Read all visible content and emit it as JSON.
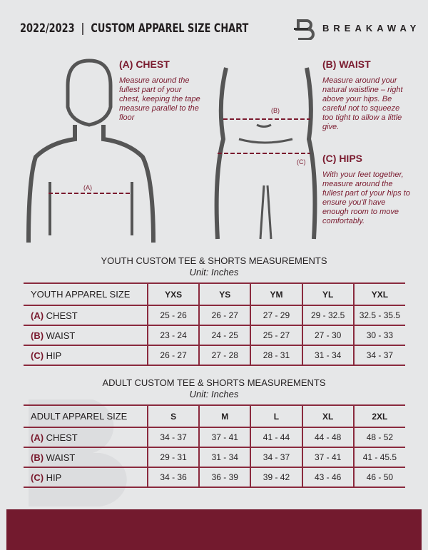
{
  "header": {
    "title": "2022/2023  |  CUSTOM APPAREL SIZE CHART",
    "brand": "BREAKAWAY"
  },
  "measures": {
    "chest": {
      "title": "(A) CHEST",
      "desc": "Measure around the fullest part of your chest, keeping the tape measure parallel to the floor",
      "marker": "(A)"
    },
    "waist": {
      "title": "(B) WAIST",
      "desc": "Measure around your natural waistline – right above your hips. Be careful not to squeeze too tight to allow a little give.",
      "marker": "(B)"
    },
    "hips": {
      "title": "(C) HIPS",
      "desc": "With your feet together, measure around the fullest part of your hips to ensure you'll have enough room to move comfortably.",
      "marker": "(C)"
    }
  },
  "youth": {
    "heading": "YOUTH CUSTOM TEE & SHORTS MEASUREMENTS",
    "unit": "Unit: Inches",
    "size_label": "YOUTH APPAREL SIZE",
    "sizes": [
      "YXS",
      "YS",
      "YM",
      "YL",
      "YXL"
    ],
    "rows": [
      {
        "code": "(A)",
        "name": "CHEST",
        "values": [
          "25 - 26",
          "26 - 27",
          "27 - 29",
          "29 - 32.5",
          "32.5 - 35.5"
        ]
      },
      {
        "code": "(B)",
        "name": "WAIST",
        "values": [
          "23 - 24",
          "24 - 25",
          "25 - 27",
          "27 - 30",
          "30 - 33"
        ]
      },
      {
        "code": "(C)",
        "name": "HIP",
        "values": [
          "26 - 27",
          "27 - 28",
          "28 - 31",
          "31 - 34",
          "34 - 37"
        ]
      }
    ]
  },
  "adult": {
    "heading": "ADULT CUSTOM TEE & SHORTS MEASUREMENTS",
    "unit": "Unit: Inches",
    "size_label": "ADULT APPAREL SIZE",
    "sizes": [
      "S",
      "M",
      "L",
      "XL",
      "2XL"
    ],
    "rows": [
      {
        "code": "(A)",
        "name": "CHEST",
        "values": [
          "34 - 37",
          "37 - 41",
          "41 - 44",
          "44 - 48",
          "48 - 52"
        ]
      },
      {
        "code": "(B)",
        "name": "WAIST",
        "values": [
          "29 - 31",
          "31 - 34",
          "34 - 37",
          "37 - 41",
          "41 - 45.5"
        ]
      },
      {
        "code": "(C)",
        "name": "HIP",
        "values": [
          "34 - 36",
          "36 - 39",
          "39 - 42",
          "43 - 46",
          "46 - 50"
        ]
      }
    ]
  },
  "colors": {
    "accent": "#7a1a2e",
    "background": "#e6e7e8"
  }
}
